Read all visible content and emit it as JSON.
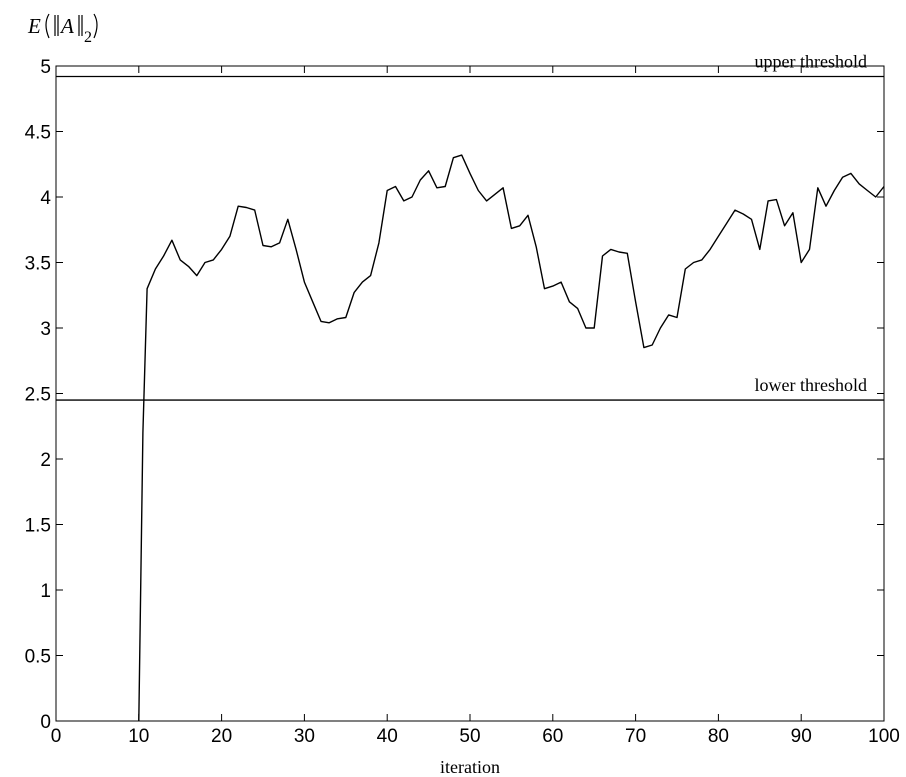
{
  "chart_data": {
    "type": "line",
    "title": "",
    "xlabel": "iteration",
    "ylabel": {
      "func": "E",
      "arg": "A",
      "sub": "2"
    },
    "xlim": [
      0,
      100
    ],
    "ylim": [
      0,
      5
    ],
    "x_ticks": [
      0,
      10,
      20,
      30,
      40,
      50,
      60,
      70,
      80,
      90,
      100
    ],
    "x_tick_labels": [
      "0",
      "10",
      "20",
      "30",
      "40",
      "50",
      "60",
      "70",
      "80",
      "90",
      "100"
    ],
    "y_ticks": [
      0,
      0.5,
      1,
      1.5,
      2,
      2.5,
      3,
      3.5,
      4,
      4.5,
      5
    ],
    "y_tick_labels": [
      "0",
      "0.5",
      "1",
      "1.5",
      "2",
      "2.5",
      "3",
      "3.5",
      "4",
      "4.5",
      "5"
    ],
    "grid": false,
    "thresholds": [
      {
        "label": "upper threshold",
        "value": 4.92
      },
      {
        "label": "lower threshold",
        "value": 2.45
      }
    ],
    "series": [
      {
        "color": "#000000",
        "x": [
          10,
          10.5,
          11,
          12,
          13,
          14,
          15,
          16,
          17,
          18,
          19,
          20,
          21,
          22,
          23,
          24,
          25,
          26,
          27,
          28,
          29,
          30,
          31,
          32,
          33,
          34,
          35,
          36,
          37,
          38,
          39,
          40,
          41,
          42,
          43,
          44,
          45,
          46,
          47,
          48,
          49,
          50,
          51,
          52,
          53,
          54,
          55,
          56,
          57,
          58,
          59,
          60,
          61,
          62,
          63,
          64,
          65,
          66,
          67,
          68,
          69,
          70,
          71,
          72,
          73,
          74,
          75,
          76,
          77,
          78,
          79,
          80,
          81,
          82,
          83,
          84,
          85,
          86,
          87,
          88,
          89,
          90,
          91,
          92,
          93,
          94,
          95,
          96,
          97,
          98,
          99,
          100
        ],
        "y": [
          0,
          2.2,
          3.3,
          3.45,
          3.55,
          3.67,
          3.52,
          3.47,
          3.4,
          3.5,
          3.52,
          3.6,
          3.7,
          3.93,
          3.92,
          3.9,
          3.63,
          3.62,
          3.65,
          3.83,
          3.6,
          3.35,
          3.2,
          3.05,
          3.04,
          3.07,
          3.08,
          3.27,
          3.35,
          3.4,
          3.65,
          4.05,
          4.08,
          3.97,
          4.0,
          4.13,
          4.2,
          4.07,
          4.08,
          4.3,
          4.32,
          4.18,
          4.05,
          3.97,
          4.02,
          4.07,
          3.76,
          3.78,
          3.86,
          3.62,
          3.3,
          3.32,
          3.35,
          3.2,
          3.15,
          3.0,
          3.0,
          3.55,
          3.6,
          3.58,
          3.57,
          3.2,
          2.85,
          2.87,
          3.0,
          3.1,
          3.08,
          3.45,
          3.5,
          3.52,
          3.6,
          3.7,
          3.8,
          3.9,
          3.87,
          3.83,
          3.6,
          3.97,
          3.98,
          3.78,
          3.88,
          3.5,
          3.6,
          4.07,
          3.93,
          4.05,
          4.15,
          4.18,
          4.1,
          4.05,
          4.0,
          4.08
        ]
      }
    ]
  }
}
